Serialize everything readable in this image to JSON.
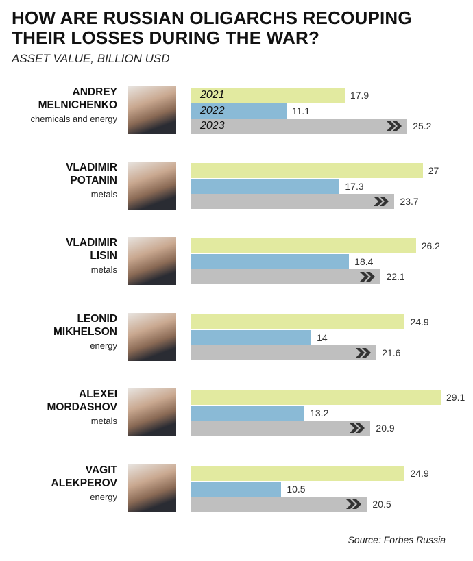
{
  "chart_data": {
    "type": "bar",
    "title": "HOW ARE RUSSIAN OLIGARCHS RECOUPING THEIR LOSSES DURING THE WAR?",
    "subtitle": "ASSET VALUE, BILLION USD",
    "legend": [
      "2021",
      "2022",
      "2023"
    ],
    "colors": {
      "2021": "#e2eaa0",
      "2022": "#8abad6",
      "2023": "#bfbfbf",
      "chevron": "#333333"
    },
    "categories": [
      {
        "name_line1": "ANDREY",
        "name_line2": "MELNICHENKO",
        "sector": "chemicals and energy"
      },
      {
        "name_line1": "VLADIMIR",
        "name_line2": "POTANIN",
        "sector": "metals"
      },
      {
        "name_line1": "VLADIMIR",
        "name_line2": "LISIN",
        "sector": "metals"
      },
      {
        "name_line1": "LEONID",
        "name_line2": "MIKHELSON",
        "sector": "energy"
      },
      {
        "name_line1": "ALEXEI",
        "name_line2": "MORDASHOV",
        "sector": "metals"
      },
      {
        "name_line1": "VAGIT",
        "name_line2": "ALEKPEROV",
        "sector": "energy"
      }
    ],
    "series": [
      {
        "name": "2021",
        "values": [
          17.9,
          27,
          26.2,
          24.9,
          29.1,
          24.9
        ]
      },
      {
        "name": "2022",
        "values": [
          11.1,
          17.3,
          18.4,
          14,
          13.2,
          10.5
        ]
      },
      {
        "name": "2023",
        "values": [
          25.2,
          23.7,
          22.1,
          21.6,
          20.9,
          20.5
        ]
      }
    ],
    "xlim": [
      0,
      29.1
    ],
    "source": "Source: Forbes Russia"
  }
}
